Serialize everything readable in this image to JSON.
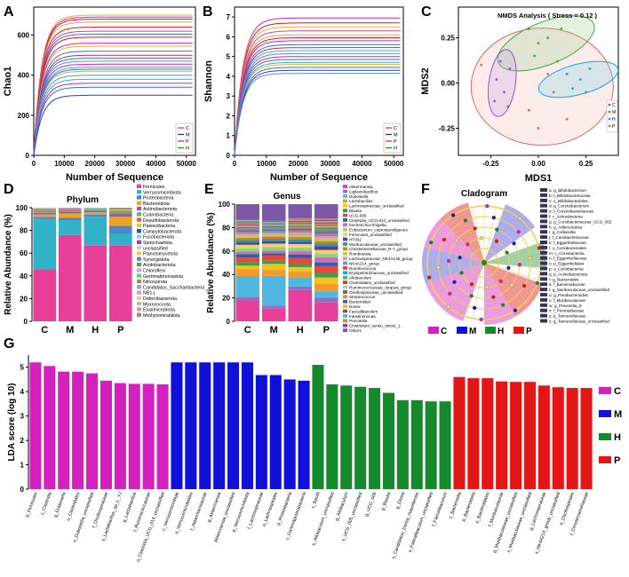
{
  "panels": {
    "A": "A",
    "B": "B",
    "C": "C",
    "D": "D",
    "E": "E",
    "F": "F",
    "G": "G"
  },
  "colors": {
    "C": "#d61fbf",
    "M": "#1010d8",
    "H": "#138a2c",
    "P": "#e31515",
    "black": "#000000"
  },
  "chart_data": [
    {
      "id": "A",
      "type": "line",
      "xlabel": "Number of Sequence",
      "ylabel": "Chao1",
      "xticks": [
        "0",
        "10000",
        "20000",
        "30000",
        "40000",
        "50000"
      ],
      "yticks": [
        "0",
        "200",
        "400",
        "600"
      ],
      "xlim": [
        0,
        53000
      ],
      "ylim": [
        0,
        740
      ],
      "legend": [
        "C",
        "M",
        "P",
        "H"
      ],
      "plateaus": [
        [
          700,
          "#e6b422"
        ],
        [
          690,
          "#d61fbf"
        ],
        [
          680,
          "#e31515"
        ],
        [
          665,
          "#c9b04a"
        ],
        [
          640,
          "#e31515"
        ],
        [
          620,
          "#c73ec9"
        ],
        [
          605,
          "#3a6fd6"
        ],
        [
          590,
          "#e31515"
        ],
        [
          560,
          "#d61fbf"
        ],
        [
          545,
          "#e6b422"
        ],
        [
          520,
          "#3a6fd6"
        ],
        [
          500,
          "#b03060"
        ],
        [
          485,
          "#3a6fd6"
        ],
        [
          470,
          "#5b8fd9"
        ],
        [
          455,
          "#d61fbf"
        ],
        [
          440,
          "#2ab4c7"
        ],
        [
          430,
          "#3a6fd6"
        ],
        [
          420,
          "#c9b04a"
        ],
        [
          400,
          "#5b8fd9"
        ],
        [
          380,
          "#2ab4c7"
        ],
        [
          360,
          "#d61fbf"
        ],
        [
          340,
          "#3a6fd6"
        ],
        [
          300,
          "#2a3ad6"
        ]
      ]
    },
    {
      "id": "B",
      "type": "line",
      "xlabel": "Number of Sequence",
      "ylabel": "Shannon",
      "xticks": [
        "0",
        "10000",
        "20000",
        "30000",
        "40000",
        "50000"
      ],
      "yticks": [
        "0",
        "1",
        "2",
        "3",
        "4",
        "5",
        "6",
        "7"
      ],
      "xlim": [
        0,
        53000
      ],
      "ylim": [
        0,
        7.5
      ],
      "legend": [
        "C",
        "M",
        "P",
        "H"
      ],
      "plateaus": [
        [
          6.95,
          "#d61fbf"
        ],
        [
          6.7,
          "#e31515"
        ],
        [
          6.5,
          "#e6b422"
        ],
        [
          6.3,
          "#c73ec9"
        ],
        [
          6.1,
          "#c9b04a"
        ],
        [
          5.95,
          "#e31515"
        ],
        [
          5.8,
          "#d61fbf"
        ],
        [
          5.6,
          "#3a6fd6"
        ],
        [
          5.45,
          "#b03060"
        ],
        [
          5.3,
          "#2ab4c7"
        ],
        [
          5.15,
          "#5b8fd9"
        ],
        [
          5.0,
          "#d61fbf"
        ],
        [
          4.85,
          "#3a6fd6"
        ],
        [
          4.7,
          "#2ab4c7"
        ],
        [
          4.6,
          "#e6b422"
        ],
        [
          4.45,
          "#3a6fd6"
        ],
        [
          4.3,
          "#2a3ad6"
        ],
        [
          4.15,
          "#5b8fd9"
        ]
      ]
    },
    {
      "id": "C",
      "type": "scatter",
      "title": "NMDS Analysis ( Stress = 0.12 )",
      "xlabel": "MDS1",
      "ylabel": "MDS2",
      "xticks": [
        -0.25,
        0.0,
        0.25
      ],
      "yticks": [
        -0.25,
        0.0,
        0.25
      ],
      "xlim": [
        -0.42,
        0.42
      ],
      "ylim": [
        -0.4,
        0.42
      ],
      "legend": [
        "C",
        "M",
        "H",
        "P"
      ],
      "points": {
        "C": [
          [
            -0.2,
            0.12
          ],
          [
            -0.22,
            0.02
          ],
          [
            -0.18,
            -0.05
          ],
          [
            -0.15,
            0.08
          ],
          [
            -0.23,
            -0.1
          ],
          [
            -0.16,
            -0.13
          ]
        ],
        "M": [
          [
            -0.05,
            0.3
          ],
          [
            0.0,
            0.22
          ],
          [
            0.05,
            0.25
          ],
          [
            -0.02,
            0.15
          ],
          [
            0.1,
            0.12
          ],
          [
            0.12,
            0.3
          ]
        ],
        "H": [
          [
            0.15,
            0.05
          ],
          [
            0.22,
            0.02
          ],
          [
            0.27,
            0.08
          ],
          [
            0.18,
            -0.03
          ],
          [
            0.25,
            -0.05
          ]
        ],
        "P": [
          [
            -0.3,
            0.1
          ],
          [
            0.05,
            0.05
          ],
          [
            0.08,
            -0.05
          ],
          [
            -0.05,
            -0.15
          ],
          [
            0.0,
            -0.25
          ],
          [
            0.15,
            -0.2
          ]
        ]
      }
    },
    {
      "id": "D",
      "type": "bar",
      "title": "Phylum",
      "ylabel": "Relative Abundance (%)",
      "categories": [
        "C",
        "M",
        "H",
        "P"
      ],
      "yticks": [
        "0",
        "20",
        "40",
        "60",
        "80",
        "100"
      ],
      "legend": [
        "Firmicutes",
        "Verrucomicrobiota",
        "Proteobacteria",
        "Bacteroidota",
        "Actinobacteriota",
        "Cyanobacteria",
        "Desulfobacterota",
        "Patescibacteria",
        "Campylobacterota",
        "Fusobacteriota",
        "Spirochaetota",
        "unclassified",
        "Planctomycetota",
        "Synergistota",
        "Acidobacteriota",
        "Chloroflexi",
        "Gemmatimonadota",
        "Nitrospirota",
        "Candidatus_Saccharibacteria",
        "NB1-j",
        "Deferribacterota",
        "Myxococcota",
        "Elusimicrobiota",
        "Methylomirabilota"
      ],
      "stack_colors": [
        "#e8409a",
        "#32b2c8",
        "#4a86c8",
        "#f1a21f",
        "#8a63b8",
        "#5bbd6a",
        "#ef5b4a",
        "#c9d13d",
        "#2d5aa5",
        "#8fd0e8",
        "#a24a8e",
        "#cfd2d4",
        "#f2c94c",
        "#7b7bd0",
        "#59a14f",
        "#e7a0c8",
        "#76c7a0",
        "#b3874a",
        "#8aa7c8",
        "#c8a0e0",
        "#e9d0a0",
        "#a0c8c0",
        "#d0a0a0",
        "#909090"
      ],
      "stacks": {
        "C": [
          46,
          44,
          2,
          2,
          1.5,
          1,
          1,
          0.5,
          0.5,
          0.5,
          0.5,
          0.3,
          0.2
        ],
        "M": [
          76,
          13,
          2,
          4,
          1.5,
          1,
          1,
          0.5,
          0.5,
          0.3,
          0.2
        ],
        "H": [
          67,
          25,
          2,
          2,
          1.5,
          1,
          0.5,
          0.5,
          0.3,
          0.2
        ],
        "P": [
          67,
          10,
          7,
          8,
          3,
          1.5,
          1,
          1,
          0.5,
          0.5,
          0.5
        ]
      }
    },
    {
      "id": "E",
      "type": "bar",
      "title": "Genus",
      "ylabel": "Relative Abundance (%)",
      "categories": [
        "C",
        "M",
        "H",
        "P"
      ],
      "yticks": [
        "0",
        "20",
        "40",
        "60",
        "80",
        "100"
      ],
      "legend": [
        "Akkermansia",
        "Ligilactobacillus",
        "Dubosiella",
        "Lactobacillus",
        "Lachnospiraceae_unclassified",
        "Blautia",
        "UCG-005",
        "Clostridia_UCG-014_unclassified",
        "Escherichia-Shigella",
        "Eubacterium_coprostanoligenes",
        "Firmicutes_unclassified",
        "HT002",
        "Muribaculaceae_unclassified",
        "Christensenellaceae_R-7_group",
        "Romboutsia",
        "Lachnospiraceae_NK4A136_group",
        "NK4A214_group",
        "Ruminococcus",
        "Erysipelotrichaceae_unclassified",
        "Allobaculum",
        "Clostridiales_unclassified",
        "Ruminococcaceae_torques_group",
        "Oscillospiraceae_unclassified",
        "Streptococcus",
        "Bacteroides",
        "Dorea",
        "Faecalibaculum",
        "Intestinimonas",
        "Prevotella",
        "Clostridium_sensu_stricto_1",
        "Others"
      ],
      "stack_colors": [
        "#e8409a",
        "#9a6cc0",
        "#4fb8e0",
        "#f39a2b",
        "#f4c21c",
        "#3c9e4a",
        "#e5473b",
        "#2b5fb0",
        "#c96fb8",
        "#8fd37a",
        "#f2d06b",
        "#5a3d8f",
        "#1e9e9e",
        "#d57d2b",
        "#b8d23a",
        "#e890b8",
        "#7a8cd8",
        "#c0504d",
        "#2f9bd5",
        "#66b04a",
        "#9d5d3a",
        "#d9a8e8",
        "#4e7a3a",
        "#f07a6a",
        "#386ba8",
        "#d6c04a",
        "#a03a7a",
        "#55c0a8",
        "#c8845a",
        "#8a3ad6",
        "#7b58a8"
      ],
      "stacks": {
        "C": [
          18,
          3,
          18,
          6,
          3,
          3,
          4,
          3,
          2,
          3,
          3,
          2,
          2,
          2,
          2,
          1.5,
          1.5,
          1.5,
          1,
          1,
          1,
          1,
          1,
          1,
          1,
          0.5,
          0.5,
          0.5,
          0.5,
          0.5,
          13
        ],
        "M": [
          11,
          2,
          25,
          5,
          5,
          3,
          4,
          2,
          2,
          3,
          3,
          2,
          2,
          2,
          1.5,
          1.5,
          1.5,
          1,
          1,
          1,
          1,
          0.5,
          0.5,
          0.5,
          0.5,
          0.5,
          0.5,
          0.5,
          0.5,
          0.5,
          14
        ],
        "H": [
          27,
          3,
          8,
          5,
          4,
          3,
          5,
          3,
          3,
          3,
          3,
          2,
          2,
          2,
          2,
          2,
          1.5,
          1.5,
          1,
          1,
          1,
          1,
          1,
          1,
          1,
          0.5,
          0.5,
          0.5,
          0.5,
          0.5,
          12
        ],
        "P": [
          15,
          4,
          5,
          6,
          5,
          4,
          5,
          3,
          4,
          3,
          3,
          3,
          2,
          2,
          2,
          2,
          2,
          1.5,
          1.5,
          1,
          1,
          1,
          1,
          1,
          1,
          1,
          1,
          0.5,
          0.5,
          0.5,
          11
        ]
      }
    },
    {
      "id": "F",
      "type": "cladogram",
      "title": "Cladogram",
      "legend_groups": [
        "C",
        "M",
        "H",
        "P"
      ],
      "legend": [
        "a: g_Bifidobacterium",
        "b: f_Bifidobacteriaceae",
        "c: o_Bifidobacteriales",
        "d: g_Corynebacterium",
        "e: f_Corynebacteriaceae",
        "f: c_Actinobacteria",
        "g: g_Coriobacteriaceae_UCG_002",
        "h: g_Adlercreutzia",
        "i: g_Collinsella",
        "j: f_Coriobacteriaceae",
        "k: f_Eggerthellaceae",
        "l: o_Coriobacteriales",
        "m: c_Coriobacteriia",
        "n: f_Eggerthellaceae",
        "o: p_Eggerthellales",
        "p: o_Coriobacteriia",
        "q: p_Actinobacteriota",
        "r: g_Bacteroides",
        "s: f_Bacteroidaceae",
        "t: g_Muribaculaceae_unclassified",
        "u: g_Parabacteroides",
        "v: f_Muribaculaceae",
        "w: g_Prevotella_9",
        "x: f_Prevotellaceae",
        "y: p_Tannerellaceae",
        "z: g_Tannerellaceae_unclassified"
      ]
    },
    {
      "id": "G",
      "type": "bar",
      "ylabel": "LDA score (log 10)",
      "yticks": [
        "0",
        "1",
        "2",
        "3",
        "4",
        "5"
      ],
      "ylim": [
        0,
        5.5
      ],
      "legend": [
        "C",
        "M",
        "H",
        "P"
      ],
      "bars": [
        {
          "label": "p_Firmicutes",
          "value": 5.2,
          "group": "C"
        },
        {
          "label": "c_Clostridia",
          "value": 5.05,
          "group": "C"
        },
        {
          "label": "g_Dubosiella",
          "value": 4.82,
          "group": "C"
        },
        {
          "label": "o_Clostridiales",
          "value": 4.82,
          "group": "C"
        },
        {
          "label": "s_Dubosiella_unclassified",
          "value": 4.75,
          "group": "C"
        },
        {
          "label": "f_Oscillospiraceae",
          "value": 4.45,
          "group": "C"
        },
        {
          "label": "s_Lactobacillus_sp_L_YJ",
          "value": 4.35,
          "group": "C"
        },
        {
          "label": "g_Lactobacillus",
          "value": 4.32,
          "group": "C"
        },
        {
          "label": "f_Ruminococcaceae",
          "value": 4.32,
          "group": "C"
        },
        {
          "label": "o_Clostridia_UCG_014_unclassified",
          "value": 4.3,
          "group": "C"
        },
        {
          "label": "c_Verrucomicrobiae",
          "value": 5.2,
          "group": "M"
        },
        {
          "label": "o_Verrucomicrobiales",
          "value": 5.2,
          "group": "M"
        },
        {
          "label": "f_Akkermansiaceae",
          "value": 5.2,
          "group": "M"
        },
        {
          "label": "g_Akkermansia",
          "value": 5.2,
          "group": "M"
        },
        {
          "label": "Akkermansia_unclassified",
          "value": 5.2,
          "group": "M"
        },
        {
          "label": "p_Verrucomicrobiota",
          "value": 5.2,
          "group": "M"
        },
        {
          "label": "f_Lachnospiraceae",
          "value": 4.68,
          "group": "M"
        },
        {
          "label": "o_Lachnospirales",
          "value": 4.68,
          "group": "M"
        },
        {
          "label": "p_Proteobacteria",
          "value": 4.5,
          "group": "M"
        },
        {
          "label": "c_Gammaproteobacteria",
          "value": 4.45,
          "group": "M"
        },
        {
          "label": "c_Bacilli",
          "value": 5.1,
          "group": "H"
        },
        {
          "label": "s_Allobaculum_unclassified",
          "value": 4.3,
          "group": "H"
        },
        {
          "label": "g_Allobaculum",
          "value": 4.25,
          "group": "H"
        },
        {
          "label": "s_UCG_005_unclassified",
          "value": 4.2,
          "group": "H"
        },
        {
          "label": "g_UCG_005",
          "value": 4.15,
          "group": "H"
        },
        {
          "label": "g_Blautia",
          "value": 3.95,
          "group": "H"
        },
        {
          "label": "g_Dorea",
          "value": 3.65,
          "group": "H"
        },
        {
          "label": "s_Candidatus_Dorea_massiliensis",
          "value": 3.65,
          "group": "H"
        },
        {
          "label": "s_Faecalibaculum_unclassified",
          "value": 3.6,
          "group": "H"
        },
        {
          "label": "f_Faecalibaculum",
          "value": 3.6,
          "group": "H"
        },
        {
          "label": "c_Bacteroidia",
          "value": 4.6,
          "group": "P"
        },
        {
          "label": "p_Bacteroidota",
          "value": 4.55,
          "group": "P"
        },
        {
          "label": "o_Bacteroidales",
          "value": 4.55,
          "group": "P"
        },
        {
          "label": "f_Muribaculaceae",
          "value": 4.42,
          "group": "P"
        },
        {
          "label": "g_Muribaculaceae_unclassified",
          "value": 4.4,
          "group": "P"
        },
        {
          "label": "s_Muribaculaceae_unclassified",
          "value": 4.4,
          "group": "P"
        },
        {
          "label": "g_Lachnospiraceae",
          "value": 4.25,
          "group": "P"
        },
        {
          "label": "s_NK4A214_group_unclassified",
          "value": 4.18,
          "group": "P"
        },
        {
          "label": "o_Oscillospirales",
          "value": 4.15,
          "group": "P"
        },
        {
          "label": "f_Christensenellaceae",
          "value": 4.15,
          "group": "P"
        }
      ]
    }
  ]
}
